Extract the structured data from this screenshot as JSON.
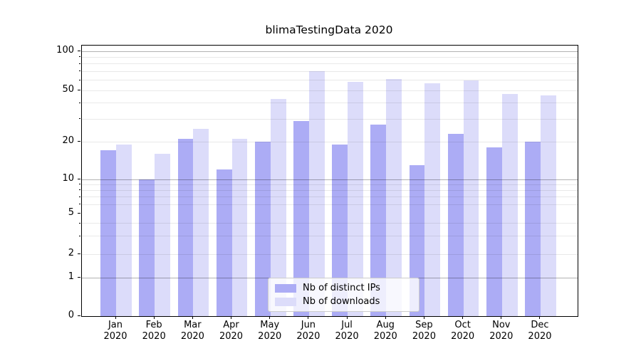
{
  "chart_data": {
    "type": "bar",
    "title": "blimaTestingData 2020",
    "categories": [
      "Jan",
      "Feb",
      "Mar",
      "Apr",
      "May",
      "Jun",
      "Jul",
      "Aug",
      "Sep",
      "Oct",
      "Nov",
      "Dec"
    ],
    "category_year": "2020",
    "series": [
      {
        "name": "Nb of distinct IPs",
        "color": "#acacf5",
        "values": [
          17,
          10,
          21,
          12,
          20,
          29,
          19,
          27,
          13,
          23,
          18,
          20
        ]
      },
      {
        "name": "Nb of downloads",
        "color": "#dcdcfa",
        "values": [
          19,
          16,
          25,
          21,
          43,
          70,
          58,
          61,
          57,
          60,
          47,
          46
        ]
      }
    ],
    "xlabel": "",
    "ylabel": "",
    "yscale": "symlog",
    "ylim": [
      0,
      112
    ],
    "yticks": [
      0,
      1,
      2,
      5,
      10,
      20,
      50,
      100
    ],
    "major_gridlines": [
      1,
      10,
      100
    ],
    "minor_gridlines": [
      2,
      3,
      4,
      6,
      7,
      8,
      9,
      20,
      30,
      40,
      50,
      60,
      70,
      80,
      90
    ],
    "grid": true,
    "legend_position": "lower center"
  }
}
